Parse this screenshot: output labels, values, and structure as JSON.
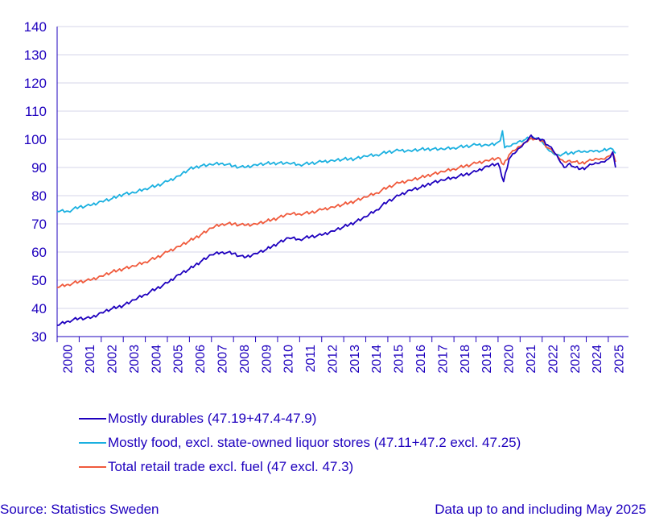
{
  "chart_data": {
    "type": "line",
    "title": "",
    "xlabel": "",
    "ylabel": "",
    "ylim": [
      30,
      140
    ],
    "yticks": [
      30,
      40,
      50,
      60,
      70,
      80,
      90,
      100,
      110,
      120,
      130,
      140
    ],
    "x_tick_labels": [
      "2000",
      "2001",
      "2002",
      "2003",
      "2004",
      "2005",
      "2006",
      "2007",
      "2008",
      "2009",
      "2010",
      "2011",
      "2012",
      "2013",
      "2014",
      "2015",
      "2016",
      "2017",
      "2018",
      "2019",
      "2020",
      "2021",
      "2022",
      "2023",
      "2024",
      "2025"
    ],
    "grid": "horizontal",
    "legend_placement": "bottom",
    "series": [
      {
        "name": "Mostly durables (47.19+47.4-47.9)",
        "color": "#1e00be",
        "points": [
          [
            2000.0,
            34
          ],
          [
            2000.5,
            35.5
          ],
          [
            2001.0,
            36.5
          ],
          [
            2001.5,
            36.5
          ],
          [
            2002.0,
            38.5
          ],
          [
            2002.5,
            40
          ],
          [
            2003.0,
            41
          ],
          [
            2003.5,
            43
          ],
          [
            2004.0,
            45
          ],
          [
            2004.5,
            47
          ],
          [
            2005.0,
            49
          ],
          [
            2005.5,
            52
          ],
          [
            2006.0,
            54
          ],
          [
            2006.5,
            56.5
          ],
          [
            2007.0,
            59
          ],
          [
            2007.5,
            60
          ],
          [
            2008.0,
            59.5
          ],
          [
            2008.5,
            58
          ],
          [
            2009.0,
            59.5
          ],
          [
            2009.5,
            61
          ],
          [
            2010.0,
            63
          ],
          [
            2010.5,
            65
          ],
          [
            2011.0,
            64.5
          ],
          [
            2011.5,
            65.5
          ],
          [
            2012.0,
            66
          ],
          [
            2012.5,
            67.5
          ],
          [
            2013.0,
            69
          ],
          [
            2013.5,
            70.5
          ],
          [
            2014.0,
            72.5
          ],
          [
            2014.5,
            75
          ],
          [
            2015.0,
            78
          ],
          [
            2015.5,
            80
          ],
          [
            2016.0,
            82
          ],
          [
            2016.5,
            83
          ],
          [
            2017.0,
            84.5
          ],
          [
            2017.5,
            85.5
          ],
          [
            2018.0,
            86.5
          ],
          [
            2018.5,
            87.5
          ],
          [
            2019.0,
            88.5
          ],
          [
            2019.5,
            90.5
          ],
          [
            2020.0,
            91.5
          ],
          [
            2020.25,
            85
          ],
          [
            2020.5,
            93
          ],
          [
            2020.75,
            95
          ],
          [
            2021.0,
            97
          ],
          [
            2021.25,
            99
          ],
          [
            2021.5,
            101.5
          ],
          [
            2021.75,
            100
          ],
          [
            2022.0,
            100
          ],
          [
            2022.25,
            98
          ],
          [
            2022.5,
            96
          ],
          [
            2022.75,
            93
          ],
          [
            2023.0,
            90
          ],
          [
            2023.25,
            91.5
          ],
          [
            2023.5,
            90
          ],
          [
            2023.75,
            89.5
          ],
          [
            2024.0,
            90
          ],
          [
            2024.25,
            91
          ],
          [
            2024.5,
            91.5
          ],
          [
            2024.75,
            92
          ],
          [
            2025.0,
            93
          ],
          [
            2025.2,
            95.5
          ],
          [
            2025.33,
            90
          ]
        ]
      },
      {
        "name": "Mostly food, excl. state-owned liquor stores (47.11+47.2 excl. 47.25)",
        "color": "#1ab0e0",
        "points": [
          [
            2000.0,
            74.5
          ],
          [
            2000.5,
            74.5
          ],
          [
            2001.0,
            76
          ],
          [
            2001.5,
            76.5
          ],
          [
            2002.0,
            78
          ],
          [
            2002.5,
            79
          ],
          [
            2003.0,
            80.5
          ],
          [
            2003.5,
            81
          ],
          [
            2004.0,
            82.5
          ],
          [
            2004.5,
            83.5
          ],
          [
            2005.0,
            85
          ],
          [
            2005.5,
            87
          ],
          [
            2006.0,
            89.5
          ],
          [
            2006.5,
            90.5
          ],
          [
            2007.0,
            91
          ],
          [
            2007.5,
            91.5
          ],
          [
            2008.0,
            90.5
          ],
          [
            2008.5,
            90
          ],
          [
            2009.0,
            91
          ],
          [
            2009.5,
            91.5
          ],
          [
            2010.0,
            91.5
          ],
          [
            2010.5,
            91.5
          ],
          [
            2011.0,
            91
          ],
          [
            2011.5,
            91.5
          ],
          [
            2012.0,
            92
          ],
          [
            2012.5,
            92.5
          ],
          [
            2013.0,
            93
          ],
          [
            2013.5,
            93
          ],
          [
            2014.0,
            94
          ],
          [
            2014.5,
            94.5
          ],
          [
            2015.0,
            95.5
          ],
          [
            2015.5,
            96
          ],
          [
            2016.0,
            96
          ],
          [
            2016.5,
            96.5
          ],
          [
            2017.0,
            96.5
          ],
          [
            2017.5,
            96.5
          ],
          [
            2018.0,
            97
          ],
          [
            2018.5,
            97.5
          ],
          [
            2019.0,
            98
          ],
          [
            2019.5,
            98
          ],
          [
            2019.9,
            98.5
          ],
          [
            2020.0,
            99
          ],
          [
            2020.1,
            99.5
          ],
          [
            2020.2,
            103
          ],
          [
            2020.3,
            97
          ],
          [
            2020.5,
            97.5
          ],
          [
            2020.75,
            98.5
          ],
          [
            2021.0,
            99.5
          ],
          [
            2021.25,
            100
          ],
          [
            2021.5,
            100.5
          ],
          [
            2021.75,
            100.5
          ],
          [
            2022.0,
            99
          ],
          [
            2022.25,
            96.5
          ],
          [
            2022.5,
            95
          ],
          [
            2022.75,
            94.5
          ],
          [
            2023.0,
            95
          ],
          [
            2023.25,
            95
          ],
          [
            2023.5,
            95.5
          ],
          [
            2023.75,
            95.5
          ],
          [
            2024.0,
            95.5
          ],
          [
            2024.25,
            96
          ],
          [
            2024.5,
            96
          ],
          [
            2024.75,
            96
          ],
          [
            2025.0,
            96.5
          ],
          [
            2025.2,
            96.5
          ],
          [
            2025.33,
            95
          ]
        ]
      },
      {
        "name": "Total retail trade excl. fuel (47 excl. 47.3)",
        "color": "#f05a3c",
        "points": [
          [
            2000.0,
            47.5
          ],
          [
            2000.5,
            48.5
          ],
          [
            2001.0,
            49.5
          ],
          [
            2001.5,
            50
          ],
          [
            2002.0,
            51.5
          ],
          [
            2002.5,
            53
          ],
          [
            2003.0,
            54
          ],
          [
            2003.5,
            55
          ],
          [
            2004.0,
            56.5
          ],
          [
            2004.5,
            58
          ],
          [
            2005.0,
            60
          ],
          [
            2005.5,
            62
          ],
          [
            2006.0,
            64
          ],
          [
            2006.5,
            66
          ],
          [
            2007.0,
            68.5
          ],
          [
            2007.5,
            70
          ],
          [
            2008.0,
            70
          ],
          [
            2008.5,
            69.5
          ],
          [
            2009.0,
            70
          ],
          [
            2009.5,
            71
          ],
          [
            2010.0,
            72
          ],
          [
            2010.5,
            73.5
          ],
          [
            2011.0,
            73.5
          ],
          [
            2011.5,
            74
          ],
          [
            2012.0,
            75
          ],
          [
            2012.5,
            76
          ],
          [
            2013.0,
            77
          ],
          [
            2013.5,
            78
          ],
          [
            2014.0,
            79.5
          ],
          [
            2014.5,
            81
          ],
          [
            2015.0,
            83
          ],
          [
            2015.5,
            84.5
          ],
          [
            2016.0,
            85.5
          ],
          [
            2016.5,
            86.5
          ],
          [
            2017.0,
            87.5
          ],
          [
            2017.5,
            88.5
          ],
          [
            2018.0,
            89.5
          ],
          [
            2018.5,
            90.5
          ],
          [
            2019.0,
            91.5
          ],
          [
            2019.5,
            92.5
          ],
          [
            2020.0,
            93.5
          ],
          [
            2020.25,
            91
          ],
          [
            2020.5,
            94.5
          ],
          [
            2020.75,
            96
          ],
          [
            2021.0,
            97.5
          ],
          [
            2021.25,
            99
          ],
          [
            2021.5,
            100.5
          ],
          [
            2021.75,
            100
          ],
          [
            2022.0,
            99.5
          ],
          [
            2022.25,
            97
          ],
          [
            2022.5,
            95.5
          ],
          [
            2022.75,
            93.5
          ],
          [
            2023.0,
            92
          ],
          [
            2023.25,
            92.5
          ],
          [
            2023.5,
            92
          ],
          [
            2023.75,
            91.5
          ],
          [
            2024.0,
            92
          ],
          [
            2024.25,
            92.5
          ],
          [
            2024.5,
            93
          ],
          [
            2024.75,
            93
          ],
          [
            2025.0,
            94
          ],
          [
            2025.2,
            95.5
          ],
          [
            2025.33,
            92
          ]
        ]
      }
    ]
  },
  "footer": {
    "source": "Source: Statistics Sweden",
    "note": "Data up to and including May 2025"
  }
}
